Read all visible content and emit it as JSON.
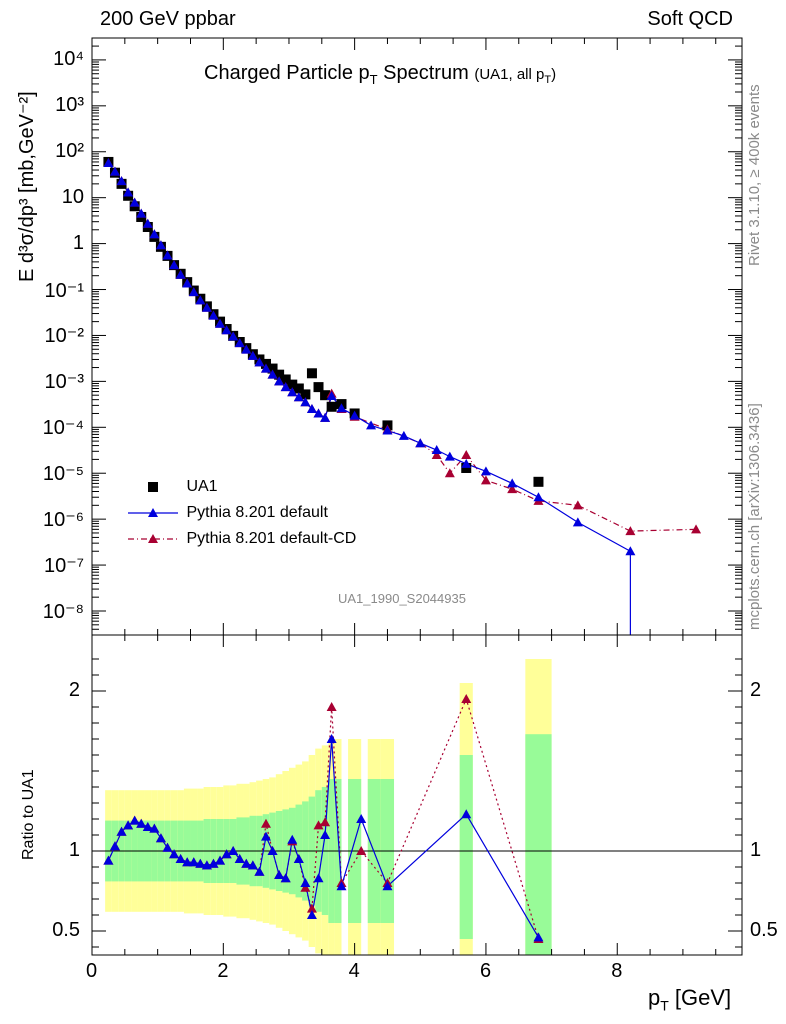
{
  "header": {
    "left": "200 GeV ppbar",
    "right": "Soft QCD"
  },
  "side_labels": {
    "top": "Rivet 3.1.10, ≥ 400k events",
    "bottom": "mcplots.cern.ch [arXiv:1306.3436]"
  },
  "chart_data": [
    {
      "panel": "main",
      "type": "scatter",
      "title_main": "Charged Particle p",
      "title_sub": "T",
      "title_tail": " Spectrum",
      "title_note": "(UA1, all p",
      "title_note_sub": "T",
      "title_note_tail": ")",
      "watermark": "UA1_1990_S2044935",
      "ylabel": "E d³σ/dp³ [mb,GeV⁻²]",
      "yscale": "log",
      "xlim": [
        0,
        9.9
      ],
      "ylim": [
        3e-09,
        30000.0
      ],
      "ytick_labels": [
        "10⁴",
        "10³",
        "10²",
        "10",
        "1",
        "10⁻¹",
        "10⁻²",
        "10⁻³",
        "10⁻⁴",
        "10⁻⁵",
        "10⁻⁶",
        "10⁻⁷",
        "10⁻⁸"
      ],
      "ytick_values": [
        10000.0,
        1000.0,
        100.0,
        10,
        1,
        0.1,
        0.01,
        0.001,
        0.0001,
        1e-05,
        1e-06,
        1e-07,
        1e-08
      ],
      "legend_position": "lower-left",
      "series": [
        {
          "name": "UA1",
          "marker": "square",
          "color": "#000000",
          "x": [
            0.25,
            0.35,
            0.45,
            0.55,
            0.65,
            0.75,
            0.85,
            0.95,
            1.05,
            1.15,
            1.25,
            1.35,
            1.45,
            1.55,
            1.65,
            1.75,
            1.85,
            1.95,
            2.05,
            2.15,
            2.25,
            2.35,
            2.45,
            2.55,
            2.65,
            2.75,
            2.85,
            2.95,
            3.05,
            3.15,
            3.25,
            3.35,
            3.45,
            3.55,
            3.65,
            3.8,
            4.0,
            4.5,
            5.7,
            6.8
          ],
          "y": [
            60,
            35,
            20,
            11,
            6.5,
            3.8,
            2.3,
            1.4,
            0.85,
            0.54,
            0.34,
            0.22,
            0.145,
            0.095,
            0.063,
            0.043,
            0.029,
            0.02,
            0.0138,
            0.0098,
            0.0072,
            0.0053,
            0.0039,
            0.003,
            0.0024,
            0.0019,
            0.0014,
            0.0011,
            0.00085,
            0.0007,
            0.00052,
            0.0015,
            0.00075,
            0.0005,
            0.00028,
            0.00032,
            0.0002,
            0.00011,
            1.3e-05,
            6.5e-06
          ]
        },
        {
          "name": "Pythia 8.201 default",
          "marker": "triangle",
          "color": "#0000dd",
          "x": [
            0.25,
            0.35,
            0.45,
            0.55,
            0.65,
            0.75,
            0.85,
            0.95,
            1.05,
            1.15,
            1.25,
            1.35,
            1.45,
            1.55,
            1.65,
            1.75,
            1.85,
            1.95,
            2.05,
            2.15,
            2.25,
            2.35,
            2.45,
            2.55,
            2.65,
            2.75,
            2.85,
            2.95,
            3.05,
            3.15,
            3.25,
            3.35,
            3.45,
            3.55,
            3.65,
            3.8,
            4.0,
            4.25,
            4.5,
            4.75,
            5.0,
            5.25,
            5.45,
            5.7,
            6.0,
            6.4,
            6.8,
            7.4,
            8.2
          ],
          "y": [
            57,
            37,
            23,
            13,
            7.8,
            4.5,
            2.7,
            1.6,
            0.92,
            0.55,
            0.34,
            0.21,
            0.135,
            0.088,
            0.058,
            0.04,
            0.027,
            0.018,
            0.013,
            0.0095,
            0.0068,
            0.0049,
            0.0036,
            0.0026,
            0.0019,
            0.0014,
            0.001,
            0.00075,
            0.00058,
            0.00045,
            0.00035,
            0.00025,
            0.0002,
            0.00016,
            0.00048,
            0.00026,
            0.00018,
            0.00011,
            8.5e-05,
            6.5e-05,
            4.5e-05,
            3.2e-05,
            2.3e-05,
            1.6e-05,
            1.1e-05,
            6e-06,
            3e-06,
            8.5e-07,
            2e-07
          ]
        },
        {
          "name": "Pythia 8.201 default-CD",
          "marker": "triangle",
          "color": "#a80032",
          "x": [
            0.25,
            0.35,
            0.45,
            0.55,
            0.65,
            0.75,
            0.85,
            0.95,
            1.05,
            1.15,
            1.25,
            1.35,
            1.45,
            1.55,
            1.65,
            1.75,
            1.85,
            1.95,
            2.05,
            2.15,
            2.25,
            2.35,
            2.45,
            2.55,
            2.65,
            2.75,
            2.85,
            2.95,
            3.05,
            3.15,
            3.25,
            3.35,
            3.45,
            3.55,
            3.65,
            3.8,
            4.0,
            4.5,
            5.0,
            5.25,
            5.45,
            5.7,
            6.0,
            6.4,
            6.8,
            7.4,
            8.2,
            9.2
          ],
          "y": [
            57,
            37,
            23,
            13,
            7.8,
            4.5,
            2.7,
            1.6,
            0.92,
            0.55,
            0.34,
            0.21,
            0.135,
            0.088,
            0.058,
            0.04,
            0.027,
            0.018,
            0.013,
            0.0095,
            0.0068,
            0.0049,
            0.0036,
            0.0026,
            0.0019,
            0.0014,
            0.001,
            0.00075,
            0.00058,
            0.00045,
            0.00035,
            0.00025,
            0.0002,
            0.00016,
            0.00054,
            0.00025,
            0.00017,
            9e-05,
            4.5e-05,
            2.5e-05,
            1e-05,
            2.5e-05,
            7e-06,
            4.5e-06,
            2.5e-06,
            2e-06,
            5.5e-07,
            6e-07
          ]
        }
      ]
    },
    {
      "panel": "ratio",
      "type": "line",
      "ylabel": "Ratio to UA1",
      "xlabel_main": "p",
      "xlabel_sub": "T",
      "xlabel_tail": " [GeV]",
      "xlim": [
        0,
        9.9
      ],
      "ylim": [
        0.35,
        2.35
      ],
      "ytick_values": [
        0.5,
        1,
        2
      ],
      "ytick_labels": [
        "0.5",
        "1",
        "2"
      ],
      "xtick_values": [
        0,
        2,
        4,
        6,
        8
      ],
      "xtick_labels": [
        "0",
        "2",
        "4",
        "6",
        "8"
      ],
      "reference_line": 1,
      "band_colors": {
        "stat": "#98fb98",
        "total": "#ffff99"
      },
      "bands": {
        "x_lo": [
          0.2,
          0.3,
          0.4,
          0.5,
          0.6,
          0.7,
          0.8,
          0.9,
          1.0,
          1.1,
          1.2,
          1.3,
          1.4,
          1.5,
          1.6,
          1.7,
          1.8,
          1.9,
          2.0,
          2.1,
          2.2,
          2.3,
          2.4,
          2.5,
          2.6,
          2.7,
          2.8,
          2.9,
          3.0,
          3.1,
          3.2,
          3.3,
          3.4,
          3.5,
          3.6,
          3.7,
          3.9,
          4.2,
          4.4,
          5.6,
          6.6
        ],
        "x_hi": [
          0.3,
          0.4,
          0.5,
          0.6,
          0.7,
          0.8,
          0.9,
          1.0,
          1.1,
          1.2,
          1.3,
          1.4,
          1.5,
          1.6,
          1.7,
          1.8,
          1.9,
          2.0,
          2.1,
          2.2,
          2.3,
          2.4,
          2.5,
          2.6,
          2.7,
          2.8,
          2.9,
          3.0,
          3.1,
          3.2,
          3.3,
          3.4,
          3.5,
          3.6,
          3.7,
          3.8,
          4.1,
          4.4,
          4.6,
          5.8,
          7.0
        ],
        "stat_lo": [
          0.81,
          0.81,
          0.81,
          0.81,
          0.81,
          0.81,
          0.81,
          0.81,
          0.81,
          0.81,
          0.81,
          0.81,
          0.81,
          0.81,
          0.81,
          0.8,
          0.8,
          0.8,
          0.8,
          0.8,
          0.79,
          0.79,
          0.78,
          0.78,
          0.77,
          0.76,
          0.75,
          0.74,
          0.73,
          0.71,
          0.69,
          0.66,
          0.62,
          0.6,
          0.55,
          0.55,
          0.55,
          0.55,
          0.55,
          0.45,
          0.35
        ],
        "stat_hi": [
          1.19,
          1.19,
          1.19,
          1.19,
          1.19,
          1.19,
          1.19,
          1.19,
          1.19,
          1.19,
          1.19,
          1.19,
          1.19,
          1.19,
          1.19,
          1.2,
          1.2,
          1.2,
          1.2,
          1.2,
          1.21,
          1.21,
          1.22,
          1.22,
          1.23,
          1.24,
          1.25,
          1.26,
          1.27,
          1.29,
          1.31,
          1.34,
          1.38,
          1.4,
          1.45,
          1.45,
          1.45,
          1.45,
          1.45,
          1.6,
          1.73
        ],
        "tot_lo": [
          0.62,
          0.62,
          0.62,
          0.62,
          0.62,
          0.62,
          0.62,
          0.62,
          0.62,
          0.62,
          0.62,
          0.62,
          0.61,
          0.61,
          0.61,
          0.6,
          0.6,
          0.6,
          0.59,
          0.59,
          0.58,
          0.58,
          0.57,
          0.56,
          0.55,
          0.54,
          0.52,
          0.5,
          0.48,
          0.46,
          0.44,
          0.4,
          0.36,
          0.34,
          0.3,
          0.3,
          0.3,
          0.3,
          0.3,
          0.3,
          0.3
        ],
        "tot_hi": [
          1.38,
          1.38,
          1.38,
          1.38,
          1.38,
          1.38,
          1.38,
          1.38,
          1.38,
          1.38,
          1.38,
          1.38,
          1.39,
          1.39,
          1.39,
          1.4,
          1.4,
          1.4,
          1.41,
          1.41,
          1.42,
          1.42,
          1.43,
          1.44,
          1.45,
          1.46,
          1.48,
          1.5,
          1.52,
          1.54,
          1.56,
          1.6,
          1.64,
          1.66,
          1.7,
          1.7,
          1.7,
          1.7,
          1.7,
          2.05,
          2.2
        ]
      },
      "series": [
        {
          "name": "Pythia 8.201 default",
          "color": "#0000dd",
          "x": [
            0.25,
            0.35,
            0.45,
            0.55,
            0.65,
            0.75,
            0.85,
            0.95,
            1.05,
            1.15,
            1.25,
            1.35,
            1.45,
            1.55,
            1.65,
            1.75,
            1.85,
            1.95,
            2.05,
            2.15,
            2.25,
            2.35,
            2.45,
            2.55,
            2.65,
            2.75,
            2.85,
            2.95,
            3.05,
            3.15,
            3.25,
            3.35,
            3.45,
            3.55,
            3.65,
            3.8,
            4.1,
            4.5,
            5.7,
            6.8
          ],
          "y": [
            0.94,
            1.03,
            1.12,
            1.16,
            1.19,
            1.17,
            1.15,
            1.14,
            1.08,
            1.02,
            0.98,
            0.95,
            0.93,
            0.93,
            0.92,
            0.91,
            0.92,
            0.94,
            0.98,
            1.0,
            0.95,
            0.92,
            0.91,
            0.87,
            1.09,
            1.0,
            0.85,
            0.83,
            1.07,
            0.95,
            0.8,
            0.6,
            0.83,
            1.1,
            1.7,
            0.78,
            1.2,
            0.78,
            1.23,
            0.46
          ]
        },
        {
          "name": "Pythia 8.201 default-CD",
          "color": "#a80032",
          "x": [
            0.25,
            0.35,
            0.45,
            0.55,
            0.65,
            0.75,
            0.85,
            0.95,
            1.05,
            1.15,
            1.25,
            1.35,
            1.45,
            1.55,
            1.65,
            1.75,
            1.85,
            1.95,
            2.05,
            2.15,
            2.25,
            2.35,
            2.45,
            2.55,
            2.65,
            2.75,
            2.85,
            2.95,
            3.05,
            3.15,
            3.25,
            3.35,
            3.45,
            3.55,
            3.65,
            3.8,
            4.1,
            4.5,
            5.7,
            6.8
          ],
          "y": [
            0.94,
            1.03,
            1.12,
            1.16,
            1.19,
            1.17,
            1.15,
            1.14,
            1.08,
            1.02,
            0.98,
            0.95,
            0.93,
            0.93,
            0.92,
            0.91,
            0.92,
            0.94,
            0.98,
            1.0,
            0.95,
            0.92,
            0.91,
            0.87,
            1.17,
            1.0,
            0.85,
            0.83,
            1.06,
            0.95,
            0.77,
            0.64,
            1.16,
            1.18,
            1.9,
            0.8,
            1.0,
            0.8,
            1.95,
            0.45
          ]
        }
      ]
    }
  ]
}
